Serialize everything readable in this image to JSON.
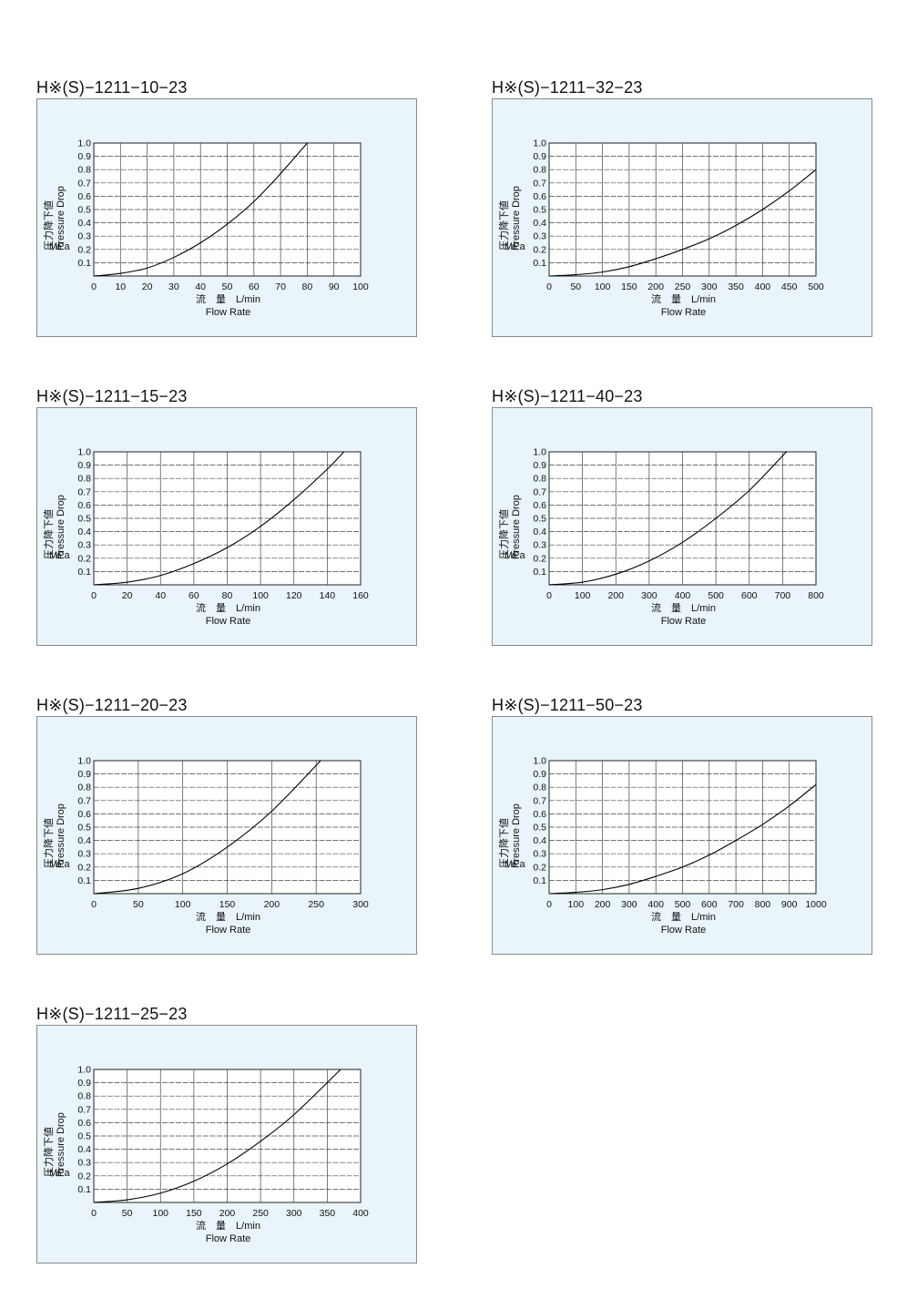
{
  "axis_text": {
    "y_jp": "圧力降下値",
    "y_en": "Pressure Drop",
    "y_unit": "MPa",
    "x_jp": "流　量　L/min",
    "x_en": "Flow Rate"
  },
  "chart_data": [
    {
      "type": "line",
      "title": "H※(S)−1211−10−23",
      "xlabel": "流　量　L/min / Flow Rate",
      "ylabel": "圧力降下値 Pressure Drop MPa",
      "xlim": [
        0,
        100
      ],
      "ylim": [
        0,
        1.0
      ],
      "xticks": [
        0,
        10,
        20,
        30,
        40,
        50,
        60,
        70,
        80,
        90,
        100
      ],
      "grid": true,
      "x": [
        0,
        10,
        20,
        30,
        40,
        50,
        60,
        70,
        80
      ],
      "y": [
        0,
        0.02,
        0.06,
        0.14,
        0.25,
        0.39,
        0.56,
        0.77,
        1.0
      ]
    },
    {
      "type": "line",
      "title": "H※(S)−1211−32−23",
      "xlabel": "流　量　L/min / Flow Rate",
      "ylabel": "圧力降下値 Pressure Drop MPa",
      "xlim": [
        0,
        500
      ],
      "ylim": [
        0,
        1.0
      ],
      "xticks": [
        0,
        50,
        100,
        150,
        200,
        250,
        300,
        350,
        400,
        450,
        500
      ],
      "grid": true,
      "x": [
        0,
        50,
        100,
        150,
        200,
        250,
        300,
        350,
        400,
        450,
        500
      ],
      "y": [
        0,
        0.01,
        0.03,
        0.07,
        0.13,
        0.2,
        0.28,
        0.38,
        0.5,
        0.64,
        0.8
      ]
    },
    {
      "type": "line",
      "title": "H※(S)−1211−15−23",
      "xlabel": "流　量　L/min / Flow Rate",
      "ylabel": "圧力降下値 Pressure Drop MPa",
      "xlim": [
        0,
        160
      ],
      "ylim": [
        0,
        1.0
      ],
      "xticks": [
        0,
        20,
        40,
        60,
        80,
        100,
        120,
        140,
        160
      ],
      "grid": true,
      "x": [
        0,
        20,
        40,
        60,
        80,
        100,
        120,
        140,
        150
      ],
      "y": [
        0,
        0.02,
        0.07,
        0.16,
        0.28,
        0.44,
        0.64,
        0.87,
        1.0
      ]
    },
    {
      "type": "line",
      "title": "H※(S)−1211−40−23",
      "xlabel": "流　量　L/min / Flow Rate",
      "ylabel": "圧力降下値 Pressure Drop MPa",
      "xlim": [
        0,
        800
      ],
      "ylim": [
        0,
        1.0
      ],
      "xticks": [
        0,
        100,
        200,
        300,
        400,
        500,
        600,
        700,
        800
      ],
      "grid": true,
      "x": [
        0,
        100,
        200,
        300,
        400,
        500,
        600,
        700,
        710
      ],
      "y": [
        0,
        0.02,
        0.08,
        0.18,
        0.32,
        0.5,
        0.71,
        0.97,
        1.0
      ]
    },
    {
      "type": "line",
      "title": "H※(S)−1211−20−23",
      "xlabel": "流　量　L/min / Flow Rate",
      "ylabel": "圧力降下値 Pressure Drop MPa",
      "xlim": [
        0,
        300
      ],
      "ylim": [
        0,
        1.0
      ],
      "xticks": [
        0,
        50,
        100,
        150,
        200,
        250,
        300
      ],
      "grid": true,
      "x": [
        0,
        50,
        100,
        150,
        200,
        255
      ],
      "y": [
        0,
        0.04,
        0.15,
        0.35,
        0.62,
        1.0
      ]
    },
    {
      "type": "line",
      "title": "H※(S)−1211−50−23",
      "xlabel": "流　量　L/min / Flow Rate",
      "ylabel": "圧力降下値 Pressure Drop MPa",
      "xlim": [
        0,
        1000
      ],
      "ylim": [
        0,
        1.0
      ],
      "xticks": [
        0,
        100,
        200,
        300,
        400,
        500,
        600,
        700,
        800,
        900,
        1000
      ],
      "grid": true,
      "x": [
        0,
        100,
        200,
        300,
        400,
        500,
        600,
        700,
        800,
        900,
        1000
      ],
      "y": [
        0,
        0.01,
        0.03,
        0.07,
        0.13,
        0.2,
        0.29,
        0.4,
        0.52,
        0.66,
        0.82
      ]
    },
    {
      "type": "line",
      "title": "H※(S)−1211−25−23",
      "xlabel": "流　量　L/min / Flow Rate",
      "ylabel": "圧力降下値 Pressure Drop MPa",
      "xlim": [
        0,
        400
      ],
      "ylim": [
        0,
        1.0
      ],
      "xticks": [
        0,
        50,
        100,
        150,
        200,
        250,
        300,
        350,
        400
      ],
      "grid": true,
      "x": [
        0,
        50,
        100,
        150,
        200,
        250,
        300,
        370
      ],
      "y": [
        0,
        0.02,
        0.07,
        0.16,
        0.29,
        0.46,
        0.66,
        1.0
      ]
    }
  ]
}
